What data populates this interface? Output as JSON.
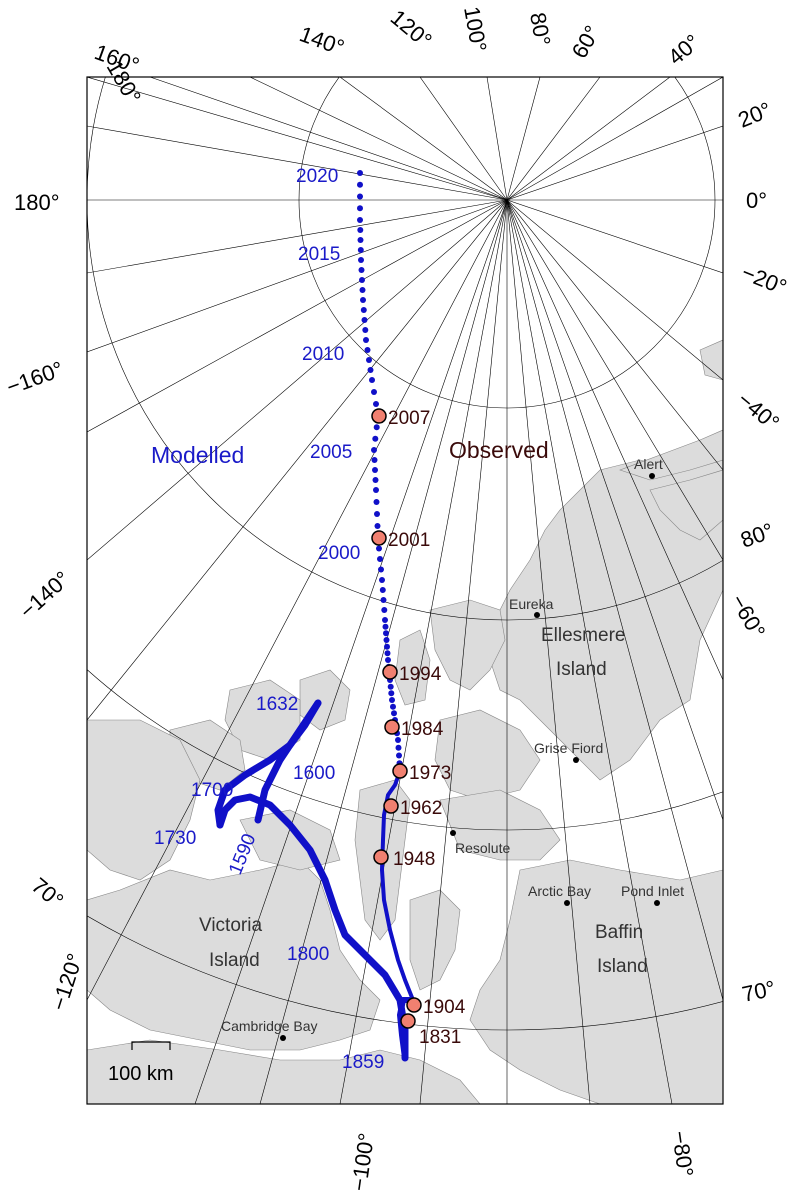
{
  "legend": {
    "modelled": "Modelled",
    "observed": "Observed"
  },
  "scale_bar": {
    "label": "100 km"
  },
  "longitude_labels": {
    "top": [
      "180°",
      "160°",
      "140°",
      "120°",
      "100°",
      "80°",
      "60°",
      "40°"
    ],
    "right": [
      "20°",
      "0°",
      "−20°",
      "−40°",
      "−60°",
      "80°",
      "70°"
    ],
    "left": [
      "180°",
      "−160°",
      "−140°",
      "70°",
      "−120°"
    ],
    "bottom": [
      "−100°",
      "−80°"
    ]
  },
  "modelled_years": [
    "2020",
    "2015",
    "2010",
    "2005",
    "2000",
    "1632",
    "1600",
    "1700",
    "1730",
    "1590",
    "1800",
    "1859"
  ],
  "observed_years": [
    "2007",
    "2001",
    "1994",
    "1984",
    "1973",
    "1962",
    "1948",
    "1904",
    "1831"
  ],
  "places": [
    "Alert",
    "Eureka",
    "Grise Fiord",
    "Resolute",
    "Arctic Bay",
    "Pond Inlet",
    "Cambridge Bay"
  ],
  "islands": {
    "ellesmere": [
      "Ellesmere",
      "Island"
    ],
    "victoria": [
      "Victoria",
      "Island"
    ],
    "baffin": [
      "Baffin",
      "Island"
    ]
  },
  "colors": {
    "modelled_path": "#1010c8",
    "observed_marker": "#f08070",
    "land": "#dcdcdc",
    "grid": "#000000"
  }
}
